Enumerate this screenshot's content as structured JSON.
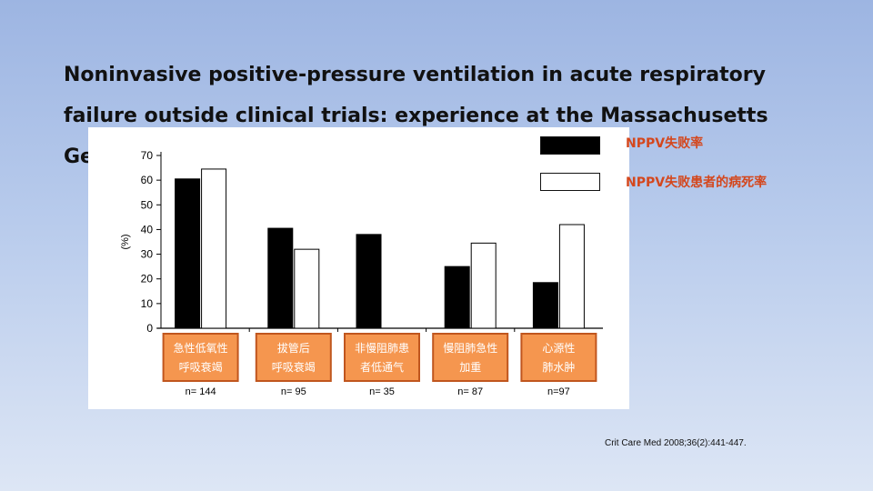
{
  "slide": {
    "title": "Noninvasive positive-pressure ventilation in acute respiratory failure outside clinical trials: experience at the Massachusetts General Hospital",
    "citation": "Crit Care Med 2008;36(2):441-447."
  },
  "legend": {
    "failure_rate": "NPPV失败率",
    "failure_mortality": "NPPV失败患者的病死率"
  },
  "colors": {
    "bar_black": "#000000",
    "bar_white": "#ffffff",
    "category_box": "#f5964f",
    "category_border": "#c0561e",
    "legend_text": "#d4471d"
  },
  "chart_data": {
    "type": "bar",
    "ylabel": "(%)",
    "ylim": [
      0,
      70
    ],
    "yticks": [
      0,
      10,
      20,
      30,
      40,
      50,
      60,
      70
    ],
    "categories": [
      {
        "line1": "急性低氧性",
        "line2": "呼吸衰竭",
        "n": "n= 144"
      },
      {
        "line1": "拔管后",
        "line2": "呼吸衰竭",
        "n": "n= 95"
      },
      {
        "line1": "非慢阻肺患",
        "line2": "者低通气",
        "n": "n= 35"
      },
      {
        "line1": "慢阻肺急性",
        "line2": "加重",
        "n": "n= 87"
      },
      {
        "line1": "心源性",
        "line2": "肺水肿",
        "n": "n=97"
      }
    ],
    "series": [
      {
        "name": "NPPV失败率",
        "color": "#000000",
        "values": [
          60.5,
          40.5,
          38,
          25,
          18.5
        ]
      },
      {
        "name": "NPPV失败患者的病死率",
        "color": "#ffffff",
        "values": [
          64.5,
          32,
          null,
          34.5,
          42
        ]
      }
    ]
  }
}
